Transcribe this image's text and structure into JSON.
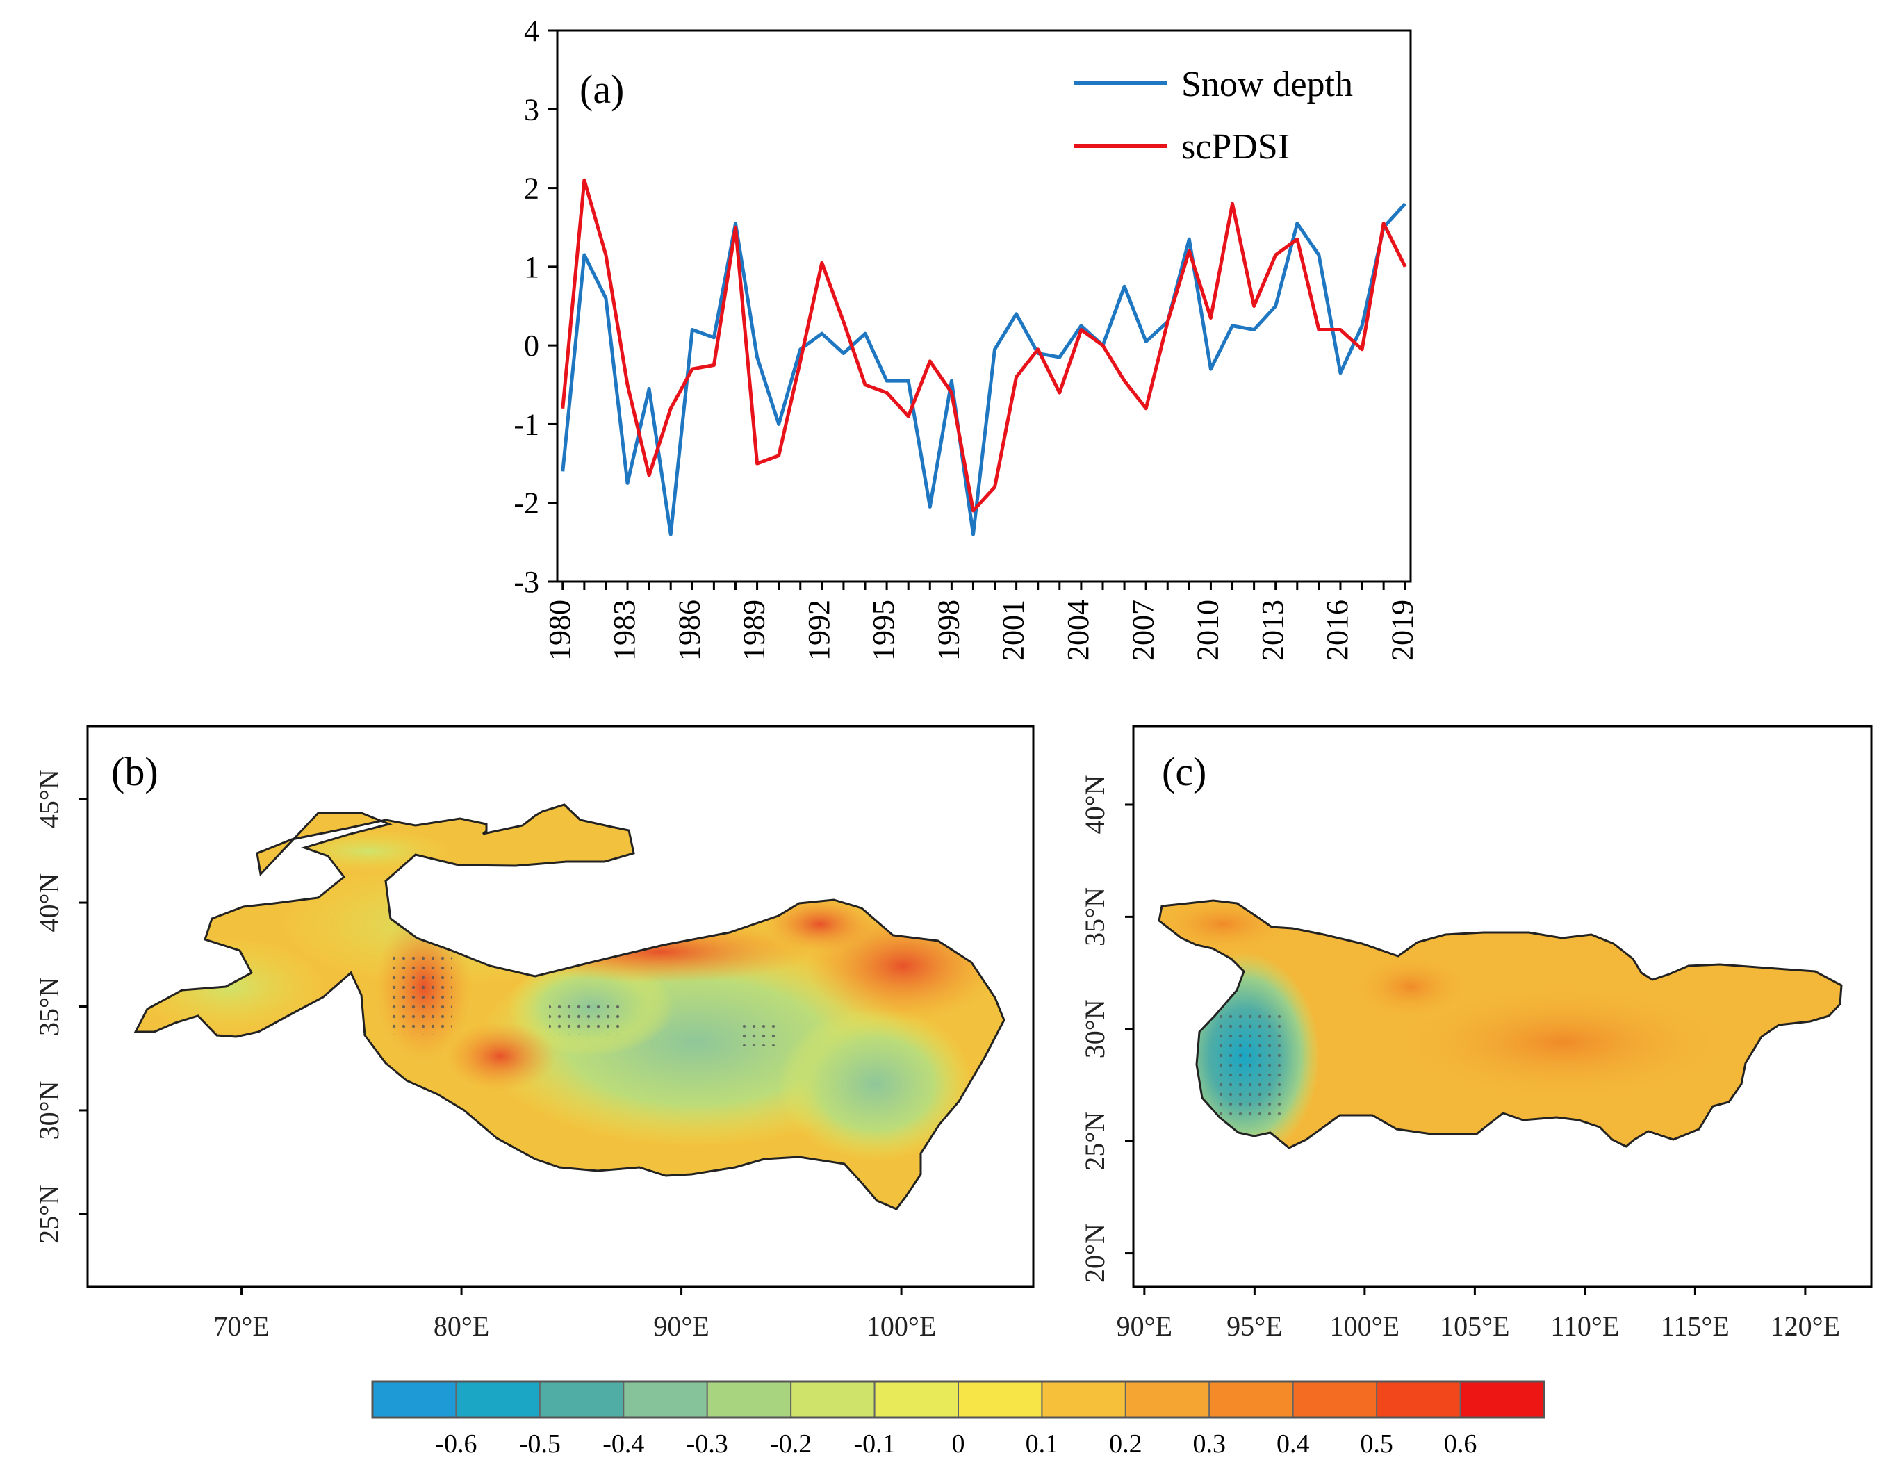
{
  "panels": {
    "a": "(a)",
    "b": "(b)",
    "c": "(c)"
  },
  "chart_data": [
    {
      "type": "line",
      "panel": "(a)",
      "x": [
        1980,
        1981,
        1982,
        1983,
        1984,
        1985,
        1986,
        1987,
        1988,
        1989,
        1990,
        1991,
        1992,
        1993,
        1994,
        1995,
        1996,
        1997,
        1998,
        1999,
        2000,
        2001,
        2002,
        2003,
        2004,
        2005,
        2006,
        2007,
        2008,
        2009,
        2010,
        2011,
        2012,
        2013,
        2014,
        2015,
        2016,
        2017,
        2018,
        2019
      ],
      "series": [
        {
          "name": "Snow depth",
          "color": "#1f77c2",
          "values": [
            -1.6,
            1.15,
            0.6,
            -1.75,
            -0.55,
            -2.4,
            0.2,
            0.1,
            1.55,
            -0.15,
            -1.0,
            -0.05,
            0.15,
            -0.1,
            0.15,
            -0.45,
            -0.45,
            -2.05,
            -0.45,
            -2.4,
            -0.05,
            0.4,
            -0.1,
            -0.15,
            0.25,
            0.0,
            0.75,
            0.05,
            0.3,
            1.35,
            -0.3,
            0.25,
            0.2,
            0.5,
            1.55,
            1.15,
            -0.35,
            0.25,
            1.5,
            1.8
          ]
        },
        {
          "name": "scPDSI",
          "color": "#e8121b",
          "values": [
            -0.8,
            2.1,
            1.15,
            -0.5,
            -1.65,
            -0.8,
            -0.3,
            -0.25,
            1.5,
            -1.5,
            -1.4,
            -0.2,
            1.05,
            0.3,
            -0.5,
            -0.6,
            -0.9,
            -0.2,
            -0.6,
            -2.1,
            -1.8,
            -0.4,
            -0.05,
            -0.6,
            0.2,
            0.0,
            -0.45,
            -0.8,
            0.3,
            1.2,
            0.35,
            1.8,
            0.5,
            1.15,
            1.35,
            0.2,
            0.2,
            -0.05,
            1.55,
            1.0
          ]
        }
      ],
      "ylim": [
        -3,
        4
      ],
      "yticks": [
        -3,
        -2,
        -1,
        0,
        1,
        2,
        3,
        4
      ],
      "xticks": [
        "1980",
        "1983",
        "1986",
        "1989",
        "1992",
        "1995",
        "1998",
        "2001",
        "2004",
        "2007",
        "2010",
        "2013",
        "2016",
        "2019"
      ],
      "legend": "top-right",
      "grid": false
    },
    {
      "type": "heatmap",
      "panel": "(b)",
      "xticks": [
        "70°E",
        "80°E",
        "90°E",
        "100°E"
      ],
      "yticks": [
        "25°N",
        "30°N",
        "35°N",
        "40°N",
        "45°N"
      ],
      "xlim": [
        63,
        106
      ],
      "ylim": [
        21.5,
        48.5
      ]
    },
    {
      "type": "heatmap",
      "panel": "(c)",
      "xticks": [
        "90°E",
        "95°E",
        "100°E",
        "105°E",
        "110°E",
        "115°E",
        "120°E"
      ],
      "yticks": [
        "20°N",
        "25°N",
        "30°N",
        "35°N",
        "40°N"
      ],
      "xlim": [
        89.5,
        123
      ],
      "ylim": [
        18.5,
        43.5
      ]
    }
  ],
  "colorbar": {
    "colors": [
      "#1e9ad6",
      "#1aa6c4",
      "#4fada6",
      "#86c39a",
      "#a8d47f",
      "#cfe36b",
      "#e9ea5a",
      "#f7e447",
      "#f6c03a",
      "#f5a531",
      "#f58a29",
      "#f46c21",
      "#f2471b",
      "#ee1515"
    ],
    "labels": [
      "-0.6",
      "-0.5",
      "-0.4",
      "-0.3",
      "-0.2",
      "-0.1",
      "0",
      "0.1",
      "0.2",
      "0.3",
      "0.4",
      "0.5",
      "0.6"
    ]
  }
}
